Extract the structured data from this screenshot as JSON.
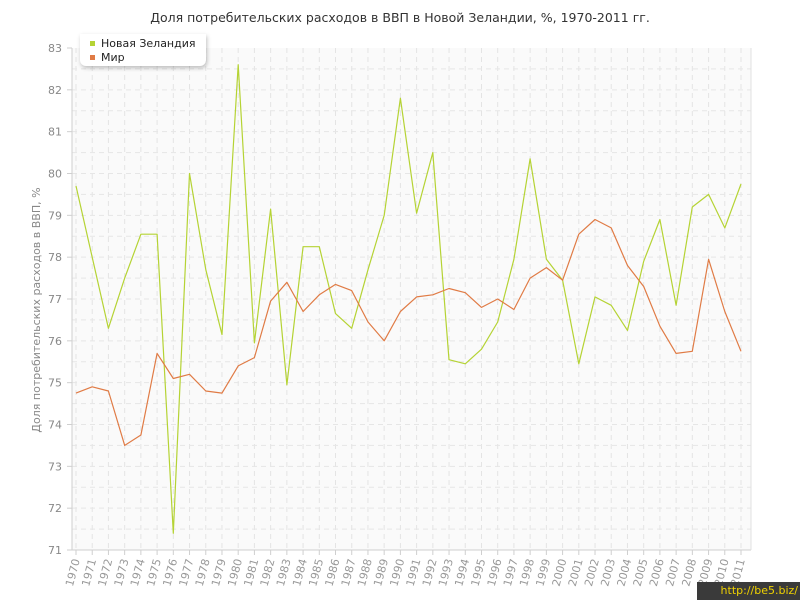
{
  "chart_data": {
    "type": "line",
    "title": "Доля потребительских расходов в ВВП в Новой Зеландии, %, 1970-2011 гг.",
    "xlabel": "",
    "ylabel": "Доля потребительских расходов в ВВП, %",
    "ylim": [
      71,
      83
    ],
    "yticks": [
      "71",
      "72",
      "73",
      "74",
      "75",
      "76",
      "77",
      "78",
      "79",
      "80",
      "81",
      "82",
      "83"
    ],
    "grid": true,
    "legend_position": "top-left",
    "x": [
      "1970",
      "1971",
      "1972",
      "1973",
      "1974",
      "1975",
      "1976",
      "1977",
      "1978",
      "1979",
      "1980",
      "1981",
      "1982",
      "1983",
      "1984",
      "1985",
      "1986",
      "1987",
      "1988",
      "1989",
      "1990",
      "1991",
      "1992",
      "1993",
      "1994",
      "1995",
      "1996",
      "1997",
      "1998",
      "1999",
      "2000",
      "2001",
      "2002",
      "2003",
      "2004",
      "2005",
      "2006",
      "2007",
      "2008",
      "2009",
      "2010",
      "2011"
    ],
    "series": [
      {
        "name": "Новая Зеландия",
        "color": "#b5d334",
        "values": [
          79.7,
          78.0,
          76.3,
          77.5,
          78.55,
          78.55,
          71.4,
          80.0,
          77.7,
          76.15,
          82.6,
          75.95,
          79.15,
          74.95,
          78.25,
          78.25,
          76.65,
          76.3,
          77.7,
          79.0,
          81.8,
          79.05,
          80.5,
          75.55,
          75.45,
          75.8,
          76.45,
          77.95,
          80.35,
          77.95,
          77.45,
          75.45,
          77.05,
          76.85,
          76.25,
          77.9,
          78.9,
          76.85,
          79.2,
          79.5,
          78.7,
          79.75
        ]
      },
      {
        "name": "Мир",
        "color": "#e07b45",
        "values": [
          74.75,
          74.9,
          74.8,
          73.5,
          73.75,
          75.7,
          75.1,
          75.2,
          74.8,
          74.75,
          75.4,
          75.6,
          76.95,
          77.4,
          76.7,
          77.1,
          77.35,
          77.2,
          76.45,
          76.0,
          76.7,
          77.05,
          77.1,
          77.25,
          77.15,
          76.8,
          77.0,
          76.75,
          77.5,
          77.75,
          77.45,
          78.55,
          78.9,
          78.7,
          77.8,
          77.3,
          76.35,
          75.7,
          75.75,
          77.95,
          76.7,
          75.75
        ]
      }
    ]
  },
  "watermark": "http://be5.biz/"
}
